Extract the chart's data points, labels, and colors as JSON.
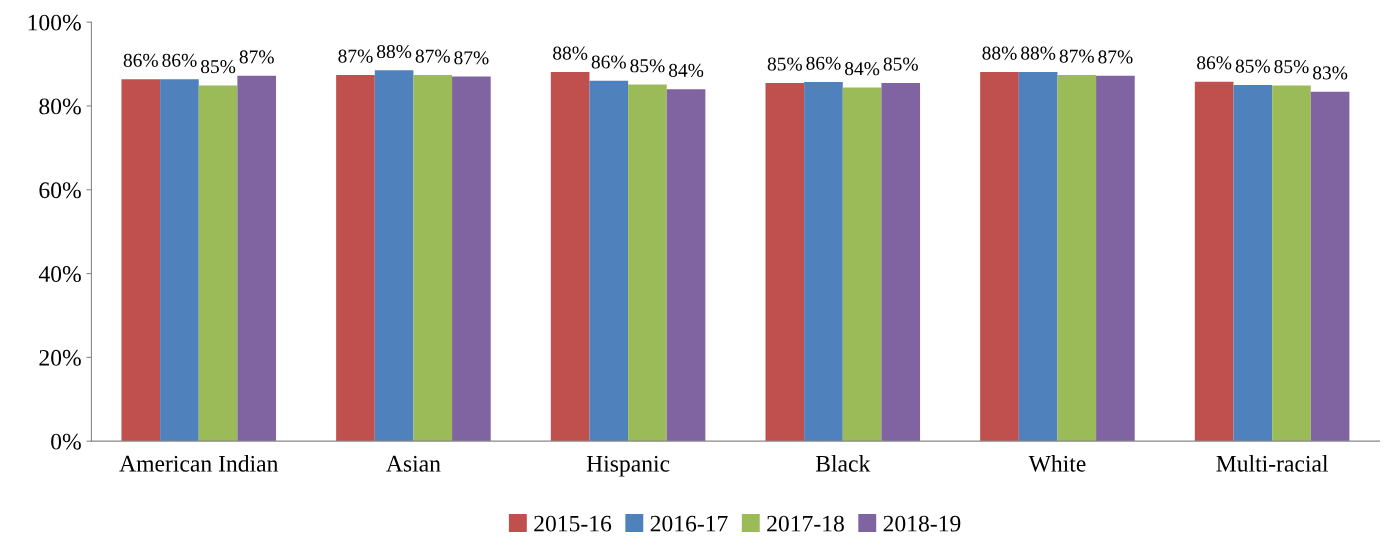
{
  "chart_data": {
    "type": "bar",
    "categories": [
      "American Indian",
      "Asian",
      "Hispanic",
      "Black",
      "White",
      "Multi-racial"
    ],
    "series": [
      {
        "name": "2015-16",
        "color": "#c0504d",
        "values": [
          86.4,
          87.4,
          88.1,
          85.5,
          88.1,
          85.8
        ],
        "value_labels": [
          "86%",
          "87%",
          "88%",
          "85%",
          "88%",
          "86%"
        ]
      },
      {
        "name": "2016-17",
        "color": "#4f81bd",
        "values": [
          86.4,
          88.5,
          86.0,
          85.7,
          88.1,
          85.0
        ],
        "value_labels": [
          "86%",
          "88%",
          "86%",
          "86%",
          "88%",
          "85%"
        ]
      },
      {
        "name": "2017-18",
        "color": "#9bbb59",
        "values": [
          84.9,
          87.4,
          85.1,
          84.4,
          87.4,
          84.9
        ],
        "value_labels": [
          "85%",
          "87%",
          "85%",
          "84%",
          "87%",
          "85%"
        ]
      },
      {
        "name": "2018-19",
        "color": "#8064a2",
        "values": [
          87.2,
          87.0,
          84.0,
          85.5,
          87.2,
          83.4
        ],
        "value_labels": [
          "87%",
          "87%",
          "84%",
          "85%",
          "87%",
          "83%"
        ]
      }
    ],
    "ylim": [
      0,
      100
    ],
    "yticks": [
      {
        "value": 0,
        "label": "0%"
      },
      {
        "value": 20,
        "label": "20%"
      },
      {
        "value": 40,
        "label": "40%"
      },
      {
        "value": 60,
        "label": "60%"
      },
      {
        "value": 80,
        "label": "80%"
      },
      {
        "value": 100,
        "label": "100%"
      }
    ],
    "grid": false,
    "legend": "bottom"
  }
}
